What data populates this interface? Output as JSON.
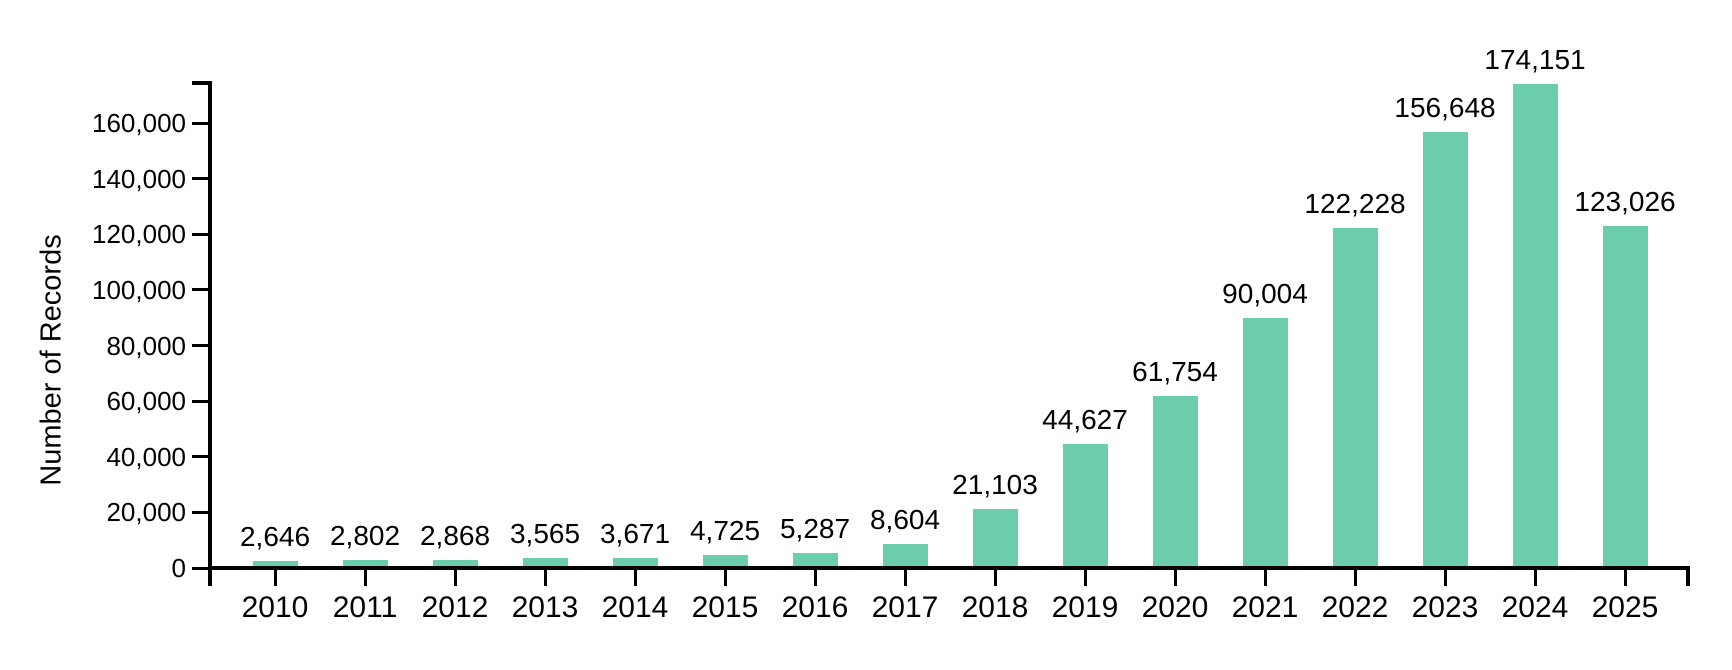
{
  "chart_data": {
    "type": "bar",
    "title": "",
    "xlabel": "",
    "ylabel": "Number of Records",
    "categories": [
      "2010",
      "2011",
      "2012",
      "2013",
      "2014",
      "2015",
      "2016",
      "2017",
      "2018",
      "2019",
      "2020",
      "2021",
      "2022",
      "2023",
      "2024",
      "2025"
    ],
    "values": [
      2646,
      2802,
      2868,
      3565,
      3671,
      4725,
      5287,
      8604,
      21103,
      44627,
      61754,
      90004,
      122228,
      156648,
      174151,
      123026
    ],
    "bar_labels": [
      "2,646",
      "2,802",
      "2,868",
      "3,565",
      "3,671",
      "4,725",
      "5,287",
      "8,604",
      "21,103",
      "44,627",
      "61,754",
      "90,004",
      "122,228",
      "156,648",
      "174,151",
      "123,026"
    ],
    "ytick_values": [
      0,
      20000,
      40000,
      60000,
      80000,
      100000,
      120000,
      140000,
      160000
    ],
    "ytick_labels": [
      "0",
      "20,000",
      "40,000",
      "60,000",
      "80,000",
      "100,000",
      "120,000",
      "140,000",
      "160,000"
    ],
    "ylim": [
      0,
      175000
    ],
    "grid": false,
    "legend": "none",
    "bar_color": "#6bcdac",
    "axis_color": "#000000",
    "text_color": "#000000",
    "background_color": "#ffffff"
  }
}
